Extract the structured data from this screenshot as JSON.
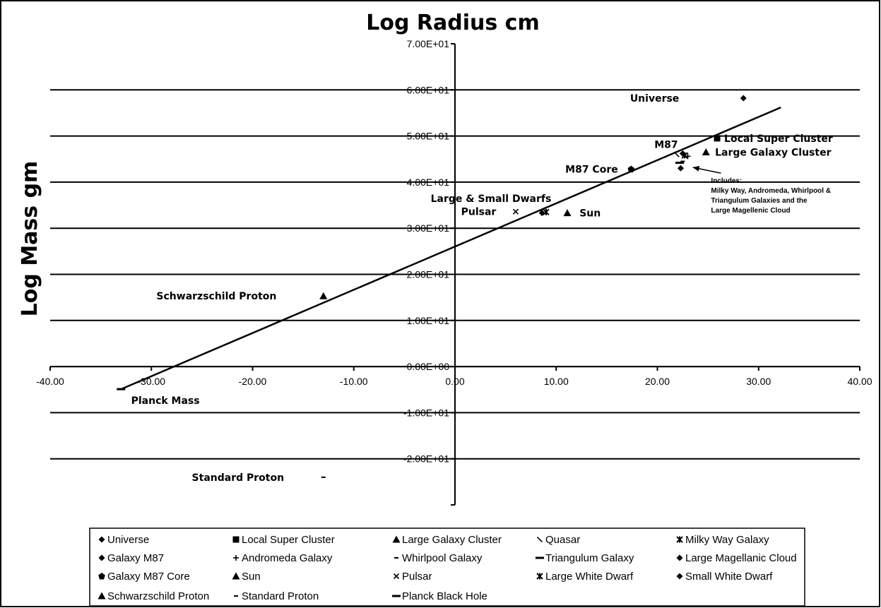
{
  "chart_data": {
    "type": "scatter",
    "title": "Log Radius cm",
    "ylabel": "Log Mass gm",
    "xlim": [
      -40,
      40
    ],
    "ylim": [
      -30,
      70
    ],
    "x_ticks": [
      "-40.00",
      "-30.00",
      "-20.00",
      "-10.00",
      "0.00",
      "10.00",
      "20.00",
      "30.00",
      "40.00"
    ],
    "y_ticks": [
      "7.00E+01",
      "6.00E+01",
      "5.00E+01",
      "4.00E+01",
      "3.00E+01",
      "2.00E+01",
      "1.00E+01",
      "0.00E+00",
      "-1.00E+01",
      "-2.00E+01"
    ],
    "grid": true,
    "legend_position": "bottom",
    "trend_line": {
      "x": [
        -33,
        32.2
      ],
      "y": [
        -4.9,
        56.2
      ]
    },
    "series": [
      {
        "name": "Universe",
        "marker": "diamond",
        "x": [
          28.5
        ],
        "y": [
          58.2
        ]
      },
      {
        "name": "Local Super Cluster",
        "marker": "square",
        "x": [
          25.9
        ],
        "y": [
          49.5
        ]
      },
      {
        "name": "Large Galaxy Cluster",
        "marker": "triangle",
        "x": [
          24.8
        ],
        "y": [
          46.5
        ]
      },
      {
        "name": "Quasar",
        "marker": "backslash",
        "x": [
          21.9
        ],
        "y": [
          46.0
        ]
      },
      {
        "name": "Milky Way Galaxy",
        "marker": "star",
        "x": [
          22.7
        ],
        "y": [
          45.8
        ]
      },
      {
        "name": "Galaxy M87",
        "marker": "diamond",
        "x": [
          22.5
        ],
        "y": [
          46.2
        ]
      },
      {
        "name": "Andromeda Galaxy",
        "marker": "plus",
        "x": [
          23.0
        ],
        "y": [
          45.6
        ]
      },
      {
        "name": "Whirlpool Galaxy",
        "marker": "dash",
        "x": [
          22.5
        ],
        "y": [
          44.5
        ]
      },
      {
        "name": "Triangulum Galaxy",
        "marker": "bar",
        "x": [
          22.2
        ],
        "y": [
          44.2
        ]
      },
      {
        "name": "Large Magellanic Cloud",
        "marker": "diamond",
        "x": [
          22.3
        ],
        "y": [
          43.0
        ]
      },
      {
        "name": "Galaxy M87 Core",
        "marker": "pentagon",
        "x": [
          17.4
        ],
        "y": [
          42.8
        ]
      },
      {
        "name": "Sun",
        "marker": "triangle",
        "x": [
          11.1
        ],
        "y": [
          33.3
        ]
      },
      {
        "name": "Pulsar",
        "marker": "x",
        "x": [
          6.0
        ],
        "y": [
          33.6
        ]
      },
      {
        "name": "Large White Dwarf",
        "marker": "star",
        "x": [
          9.0
        ],
        "y": [
          33.5
        ]
      },
      {
        "name": "Small White Dwarf",
        "marker": "diamond",
        "x": [
          8.6
        ],
        "y": [
          33.3
        ]
      },
      {
        "name": "Schwarzschild Proton",
        "marker": "triangle",
        "x": [
          -13.0
        ],
        "y": [
          15.3
        ]
      },
      {
        "name": "Standard Proton",
        "marker": "dash",
        "x": [
          -13.0
        ],
        "y": [
          -24.0
        ]
      },
      {
        "name": "Planck Black Hole",
        "marker": "bar",
        "x": [
          -33.0
        ],
        "y": [
          -4.9
        ]
      }
    ],
    "annotations": [
      {
        "text": "Universe",
        "x": 17.3,
        "y": 58.2
      },
      {
        "text": "Local Super Cluster",
        "x": 26.6,
        "y": 49.5
      },
      {
        "text": "M87",
        "x": 19.7,
        "y": 48.2
      },
      {
        "text": "Large Galaxy Cluster",
        "x": 25.7,
        "y": 46.5
      },
      {
        "text": "M87 Core",
        "x": 10.9,
        "y": 42.8
      },
      {
        "text": "Large & Small Dwarfs",
        "x": -2.4,
        "y": 36.5
      },
      {
        "text": "Pulsar",
        "x": 0.6,
        "y": 33.6
      },
      {
        "text": "Sun",
        "x": 12.3,
        "y": 33.3
      },
      {
        "text": "Schwarzschild Proton",
        "x": -29.5,
        "y": 15.3
      },
      {
        "text": "Planck Mass",
        "x": -32.0,
        "y": -7.3
      },
      {
        "text": "Standard Proton",
        "x": -26.0,
        "y": -24.0
      }
    ],
    "note": {
      "text": [
        "Includes:",
        "Milky Way, Andromeda, Whirlpool &",
        "Triangulum Galaxies and the",
        "Large Magellenic Cloud"
      ],
      "x": 25.3,
      "y": 39.8,
      "arrow_to": {
        "x": 23.5,
        "y": 43.2
      }
    }
  }
}
